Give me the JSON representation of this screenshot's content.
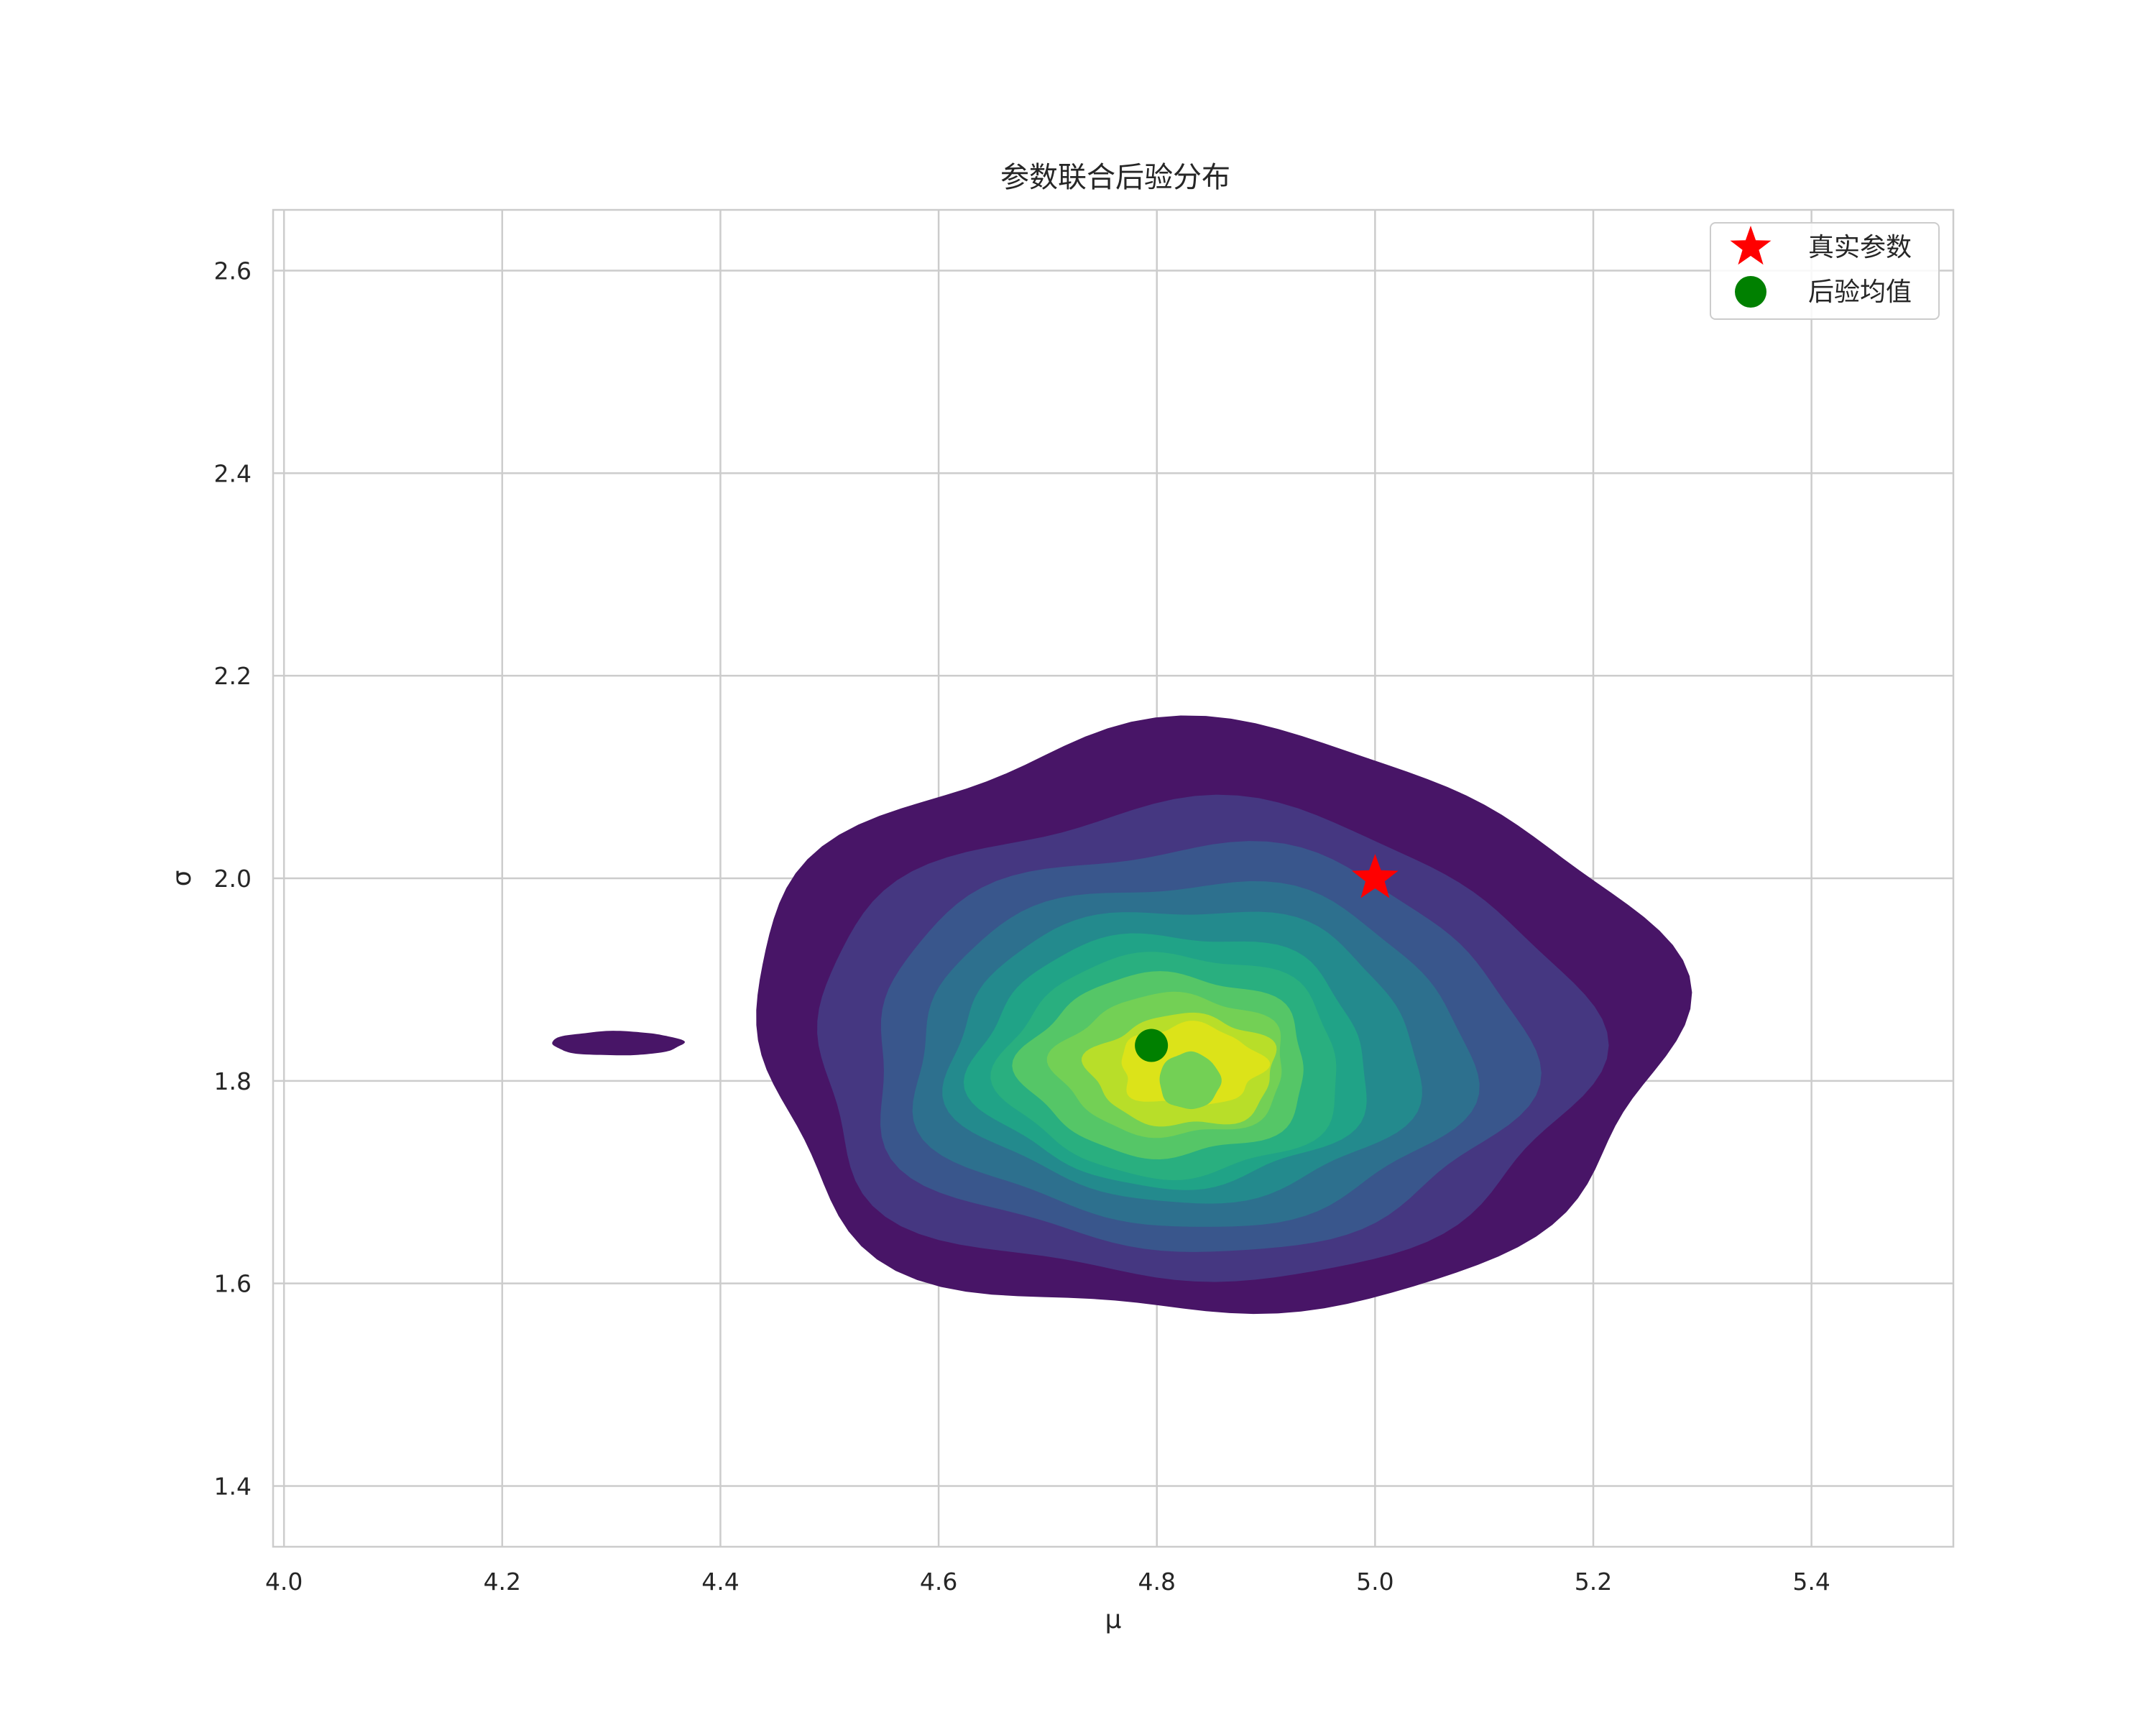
{
  "chart_data": {
    "type": "contour",
    "title": "参数联合后验分布",
    "xlabel": "μ",
    "ylabel": "σ",
    "xlim": [
      3.99,
      5.53
    ],
    "ylim": [
      1.34,
      2.66
    ],
    "x_ticks": [
      "4.0",
      "4.2",
      "4.4",
      "4.6",
      "4.8",
      "5.0",
      "5.2",
      "5.4"
    ],
    "y_ticks": [
      "1.4",
      "1.6",
      "1.8",
      "2.0",
      "2.2",
      "2.4",
      "2.6"
    ],
    "grid": true,
    "colormap": "viridis",
    "contour_fill_colors": [
      "#481567",
      "#453781",
      "#39568c",
      "#2d708e",
      "#238a8d",
      "#20a387",
      "#29af7f",
      "#55c667",
      "#73d055",
      "#b8de29",
      "#dce319"
    ],
    "kde_center": {
      "mu": 4.8,
      "sigma": 1.82
    },
    "markers": [
      {
        "name": "真实参数",
        "x": 5.0,
        "y": 2.0,
        "shape": "star",
        "color": "#ff0000"
      },
      {
        "name": "后验均值",
        "x": 4.795,
        "y": 1.835,
        "shape": "circle",
        "color": "#008000"
      }
    ],
    "legend": {
      "position": "upper-right",
      "entries": [
        "真实参数",
        "后验均值"
      ]
    }
  }
}
